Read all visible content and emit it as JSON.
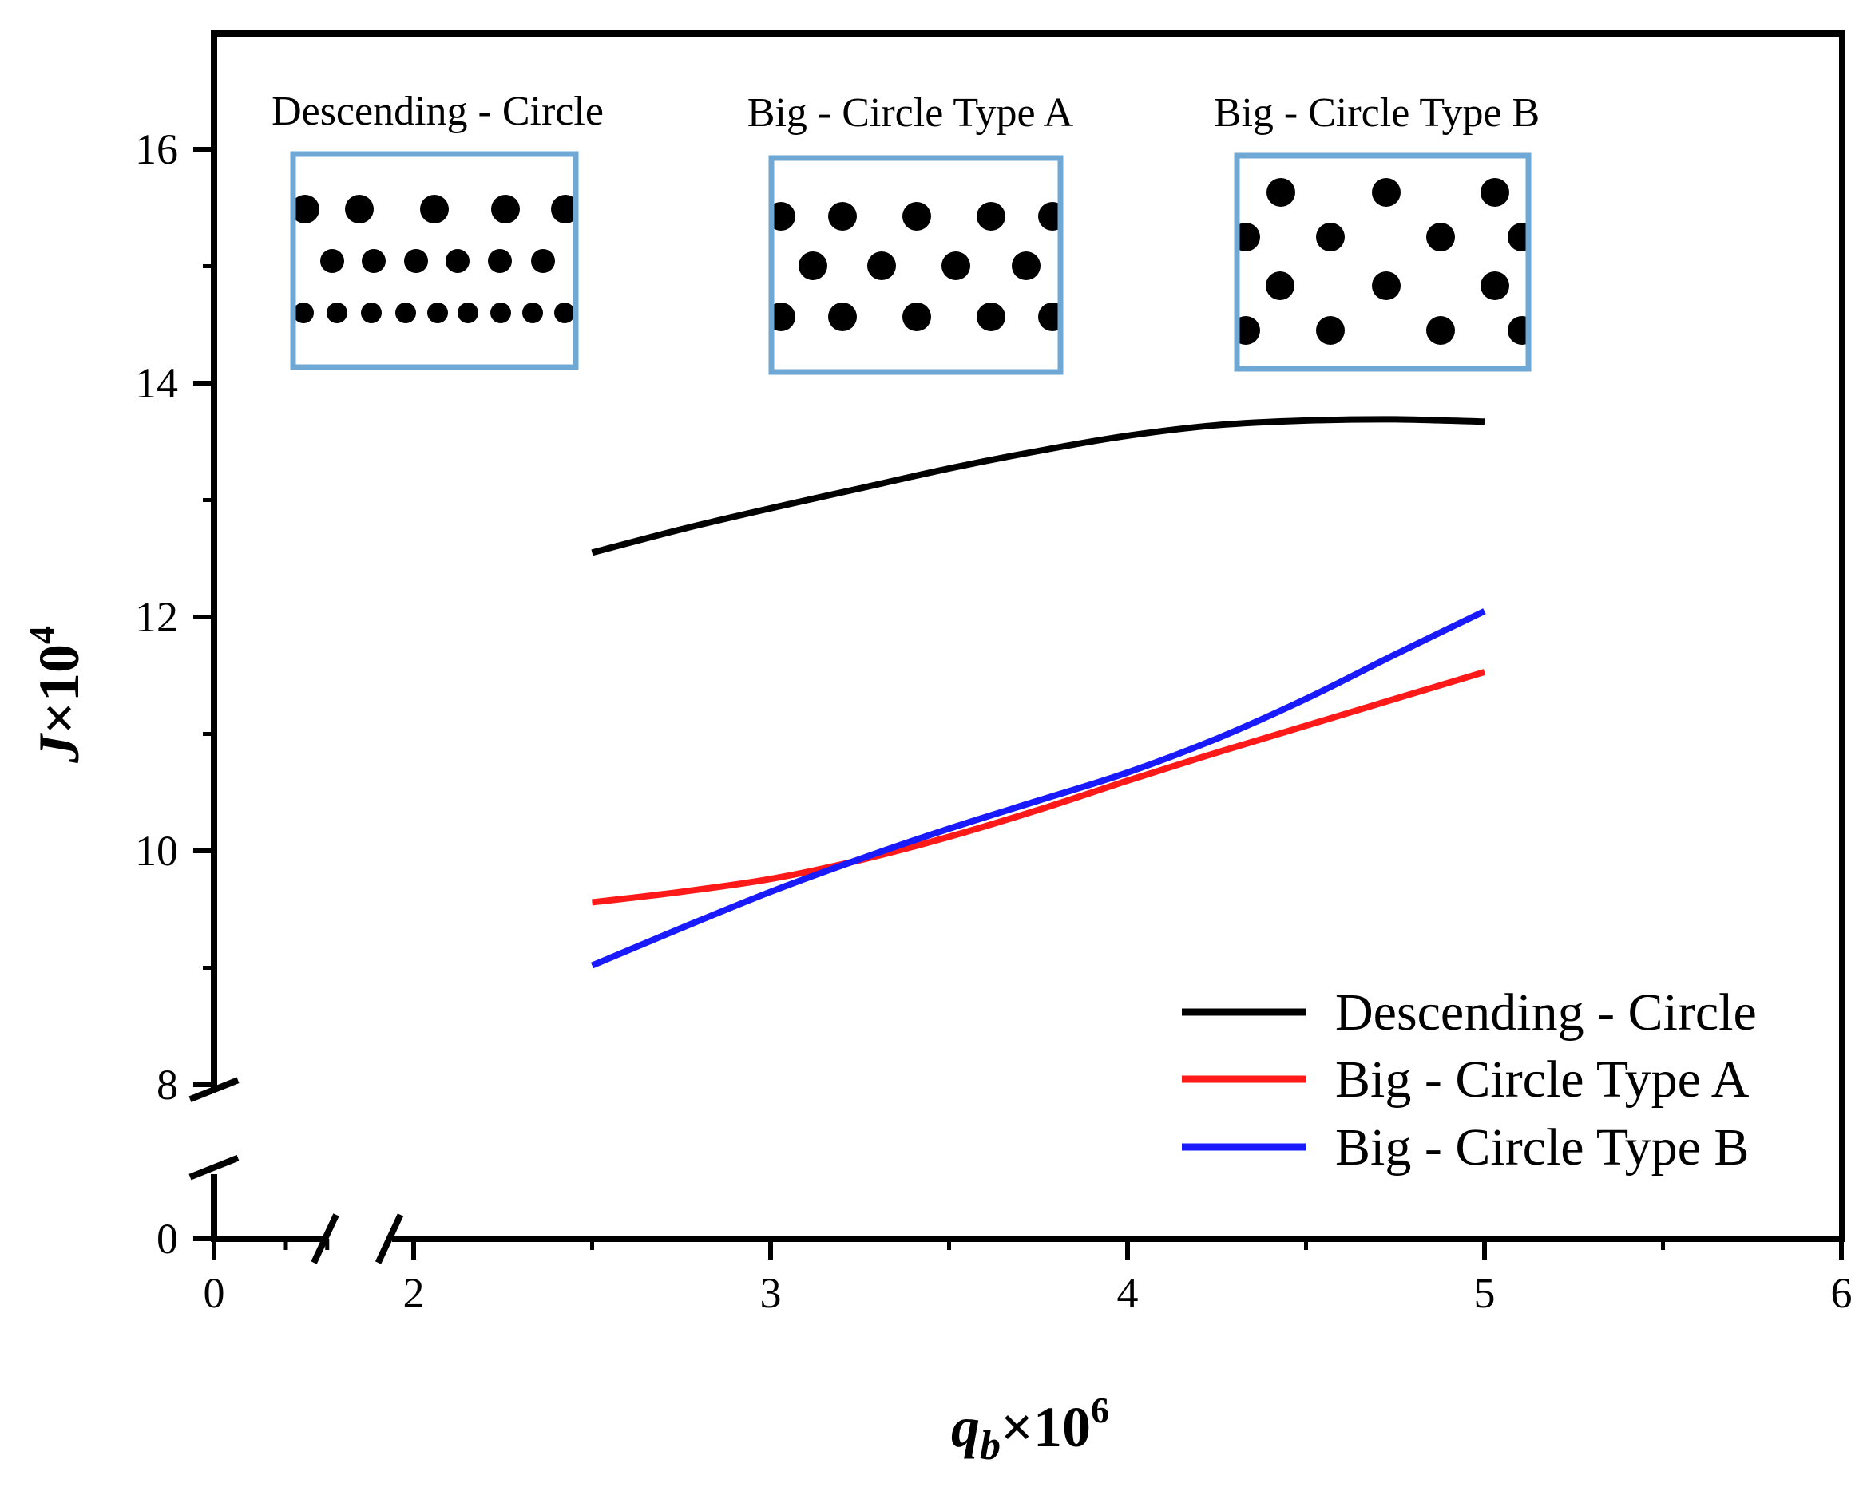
{
  "chart_data": {
    "type": "line",
    "title": "",
    "xlabel": {
      "main": "q",
      "sub": "b",
      "mult": "×10",
      "exp": "6"
    },
    "ylabel": {
      "main": "J",
      "mult": "×10",
      "exp": "4"
    },
    "xlim": [
      0,
      6
    ],
    "ylim": [
      0,
      17
    ],
    "x_axis_break": [
      0.3,
      1.7
    ],
    "y_axis_break": [
      0.5,
      7.5
    ],
    "x_ticks": [
      {
        "value": 0,
        "label": "0"
      },
      {
        "value": 2,
        "label": "2"
      },
      {
        "value": 3,
        "label": "3"
      },
      {
        "value": 4,
        "label": "4"
      },
      {
        "value": 5,
        "label": "5"
      },
      {
        "value": 6,
        "label": "6"
      }
    ],
    "x_minor_ticks": [
      0.2,
      0.4,
      2.5,
      3.5,
      4.5,
      5.5
    ],
    "y_ticks": [
      {
        "value": 0,
        "label": "0"
      },
      {
        "value": 8,
        "label": "8"
      },
      {
        "value": 10,
        "label": "10"
      },
      {
        "value": 12,
        "label": "12"
      },
      {
        "value": 14,
        "label": "14"
      },
      {
        "value": 16,
        "label": "16"
      }
    ],
    "y_minor_ticks": [
      9,
      11,
      13,
      15
    ],
    "grid": false,
    "legend_position": "bottom-right",
    "series": [
      {
        "name": "Descending - Circle",
        "color": "#000000",
        "x": [
          2.5,
          2.75,
          3.0,
          3.25,
          3.5,
          3.75,
          4.0,
          4.25,
          4.5,
          4.75,
          5.0
        ],
        "y": [
          12.55,
          12.75,
          12.93,
          13.1,
          13.27,
          13.42,
          13.55,
          13.64,
          13.68,
          13.69,
          13.67
        ]
      },
      {
        "name": "Big - Circle Type A",
        "color": "#ff1a1a",
        "x": [
          2.5,
          2.75,
          3.0,
          3.25,
          3.5,
          3.75,
          4.0,
          4.25,
          4.5,
          4.75,
          5.0
        ],
        "y": [
          9.56,
          9.65,
          9.76,
          9.92,
          10.12,
          10.35,
          10.6,
          10.84,
          11.07,
          11.3,
          11.53
        ]
      },
      {
        "name": "Big - Circle Type B",
        "color": "#1a1aff",
        "x": [
          2.5,
          2.75,
          3.0,
          3.25,
          3.5,
          3.75,
          4.0,
          4.25,
          4.5,
          4.75,
          5.0
        ],
        "y": [
          9.02,
          9.34,
          9.65,
          9.93,
          10.19,
          10.43,
          10.67,
          10.96,
          11.3,
          11.68,
          12.05
        ]
      }
    ],
    "insets": [
      {
        "title": "Descending - Circle",
        "arrangement": "descending-rows",
        "frame_color": "#6fa8d4"
      },
      {
        "title": "Big - Circle Type A",
        "arrangement": "staggered-3-rows",
        "frame_color": "#6fa8d4"
      },
      {
        "title": "Big - Circle Type B",
        "arrangement": "staggered-4-rows",
        "frame_color": "#6fa8d4"
      }
    ]
  }
}
